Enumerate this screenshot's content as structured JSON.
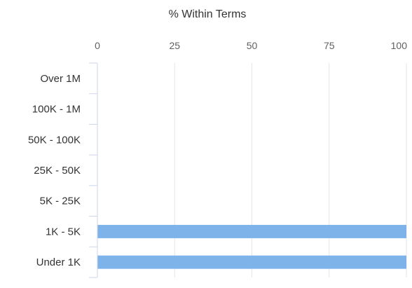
{
  "chart_data": {
    "type": "bar",
    "orientation": "horizontal",
    "title": "% Within Terms",
    "xlim": [
      0,
      100
    ],
    "xticks": [
      0,
      25,
      50,
      75,
      100
    ],
    "grid": true,
    "categories": [
      "Over 1M",
      "100K - 1M",
      "50K - 100K",
      "25K - 50K",
      "5K - 25K",
      "1K - 5K",
      "Under 1K"
    ],
    "values": [
      0,
      0,
      0,
      0,
      0,
      100,
      100
    ],
    "bar_color": "#7eb3ea",
    "grid_color": "#e6e6e6",
    "axis_color": "#ccd6eb",
    "text_color": "#333333",
    "label_color": "#606060"
  }
}
